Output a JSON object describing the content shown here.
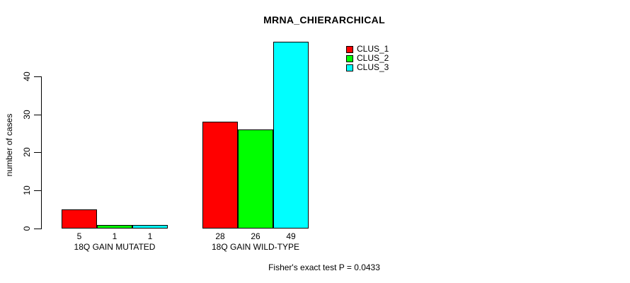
{
  "chart_data": {
    "type": "bar",
    "title": "MRNA_CHIERARCHICAL",
    "ylabel": "number of cases",
    "xlabel": "",
    "categories": [
      "18Q GAIN MUTATED",
      "18Q GAIN WILD-TYPE"
    ],
    "series": [
      {
        "name": "CLUS_1",
        "color": "#ff0000",
        "values": [
          5,
          28
        ]
      },
      {
        "name": "CLUS_2",
        "color": "#00ff00",
        "values": [
          1,
          26
        ]
      },
      {
        "name": "CLUS_3",
        "color": "#00ffff",
        "values": [
          1,
          49
        ]
      }
    ],
    "yticks": [
      0,
      10,
      20,
      30,
      40
    ],
    "ylim": [
      0,
      49
    ],
    "grid": false,
    "legend_position": "top-right",
    "bar_value_labels": true,
    "annotation": "Fisher's exact test P = 0.0433"
  },
  "colors": {
    "background": "#ffffff",
    "axis": "#000000",
    "text": "#000000"
  }
}
